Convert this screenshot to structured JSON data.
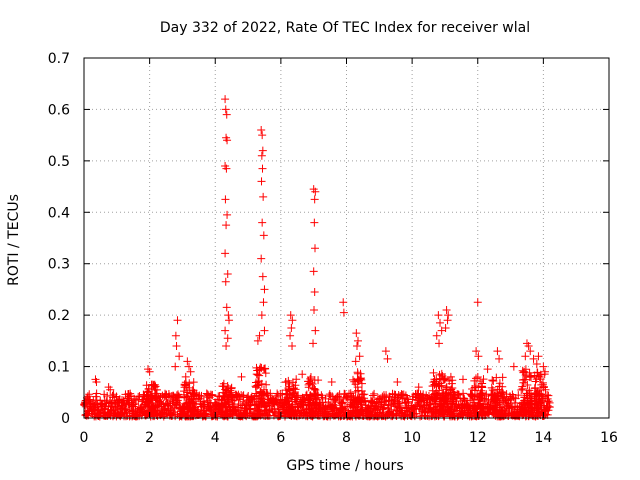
{
  "chart_data": {
    "type": "scatter",
    "title": "Day 332 of 2022, Rate Of TEC Index for receiver wlal",
    "xlabel": "GPS time / hours",
    "ylabel": "ROTI / TECUs",
    "xlim": [
      0,
      16
    ],
    "ylim": [
      0,
      0.7
    ],
    "x_ticks": [
      "0",
      "2",
      "4",
      "6",
      "8",
      "10",
      "12",
      "14",
      "16"
    ],
    "y_ticks": [
      "0",
      "0.1",
      "0.2",
      "0.3",
      "0.4",
      "0.5",
      "0.6",
      "0.7"
    ],
    "grid": true,
    "marker": "+",
    "color": "#ff0000",
    "series": [
      {
        "name": "ROTI",
        "points": [
          [
            4.3,
            0.62
          ],
          [
            4.32,
            0.6
          ],
          [
            4.35,
            0.59
          ],
          [
            4.33,
            0.545
          ],
          [
            4.36,
            0.54
          ],
          [
            4.3,
            0.49
          ],
          [
            4.34,
            0.485
          ],
          [
            4.31,
            0.425
          ],
          [
            4.36,
            0.395
          ],
          [
            4.33,
            0.375
          ],
          [
            4.3,
            0.32
          ],
          [
            4.38,
            0.28
          ],
          [
            4.32,
            0.265
          ],
          [
            4.35,
            0.215
          ],
          [
            4.4,
            0.2
          ],
          [
            4.42,
            0.19
          ],
          [
            4.3,
            0.17
          ],
          [
            4.38,
            0.155
          ],
          [
            4.33,
            0.14
          ],
          [
            5.4,
            0.56
          ],
          [
            5.43,
            0.55
          ],
          [
            5.45,
            0.52
          ],
          [
            5.42,
            0.51
          ],
          [
            5.44,
            0.485
          ],
          [
            5.41,
            0.46
          ],
          [
            5.46,
            0.43
          ],
          [
            5.43,
            0.38
          ],
          [
            5.48,
            0.355
          ],
          [
            5.4,
            0.31
          ],
          [
            5.45,
            0.275
          ],
          [
            5.5,
            0.25
          ],
          [
            5.47,
            0.225
          ],
          [
            5.42,
            0.2
          ],
          [
            5.5,
            0.17
          ],
          [
            5.35,
            0.16
          ],
          [
            5.3,
            0.15
          ],
          [
            7.0,
            0.445
          ],
          [
            7.05,
            0.44
          ],
          [
            7.03,
            0.425
          ],
          [
            7.02,
            0.38
          ],
          [
            7.04,
            0.33
          ],
          [
            7.0,
            0.285
          ],
          [
            7.03,
            0.245
          ],
          [
            7.01,
            0.21
          ],
          [
            7.05,
            0.17
          ],
          [
            6.98,
            0.145
          ],
          [
            2.85,
            0.19
          ],
          [
            2.8,
            0.16
          ],
          [
            2.82,
            0.14
          ],
          [
            2.9,
            0.12
          ],
          [
            2.78,
            0.1
          ],
          [
            6.3,
            0.2
          ],
          [
            6.35,
            0.19
          ],
          [
            6.32,
            0.175
          ],
          [
            6.28,
            0.16
          ],
          [
            6.34,
            0.14
          ],
          [
            7.9,
            0.225
          ],
          [
            7.92,
            0.205
          ],
          [
            8.3,
            0.165
          ],
          [
            8.35,
            0.15
          ],
          [
            8.32,
            0.14
          ],
          [
            8.4,
            0.12
          ],
          [
            8.28,
            0.11
          ],
          [
            9.2,
            0.13
          ],
          [
            9.25,
            0.115
          ],
          [
            10.8,
            0.2
          ],
          [
            10.85,
            0.185
          ],
          [
            10.9,
            0.17
          ],
          [
            10.75,
            0.16
          ],
          [
            10.82,
            0.145
          ],
          [
            11.05,
            0.21
          ],
          [
            11.1,
            0.2
          ],
          [
            11.08,
            0.19
          ],
          [
            11.02,
            0.175
          ],
          [
            12.0,
            0.225
          ],
          [
            11.95,
            0.13
          ],
          [
            12.02,
            0.12
          ],
          [
            12.6,
            0.13
          ],
          [
            12.65,
            0.115
          ],
          [
            13.5,
            0.145
          ],
          [
            13.55,
            0.14
          ],
          [
            13.6,
            0.13
          ],
          [
            13.45,
            0.12
          ],
          [
            13.7,
            0.115
          ],
          [
            13.8,
            0.105
          ],
          [
            13.85,
            0.12
          ],
          [
            0.35,
            0.075
          ],
          [
            0.38,
            0.07
          ],
          [
            0.75,
            0.06
          ],
          [
            0.8,
            0.055
          ],
          [
            1.95,
            0.095
          ],
          [
            2.0,
            0.09
          ],
          [
            2.1,
            0.065
          ],
          [
            2.15,
            0.06
          ],
          [
            3.15,
            0.11
          ],
          [
            3.2,
            0.1
          ],
          [
            3.25,
            0.09
          ],
          [
            3.1,
            0.08
          ],
          [
            4.8,
            0.08
          ],
          [
            6.65,
            0.085
          ],
          [
            7.55,
            0.07
          ],
          [
            9.55,
            0.07
          ],
          [
            10.2,
            0.06
          ],
          [
            11.55,
            0.075
          ],
          [
            12.3,
            0.095
          ],
          [
            13.1,
            0.1
          ],
          [
            14.0,
            0.1
          ],
          [
            14.05,
            0.09
          ]
        ],
        "baseline": {
          "x_start": 0.0,
          "x_end": 14.2,
          "typical_y": 0.02,
          "max_y": 0.045
        }
      }
    ]
  }
}
